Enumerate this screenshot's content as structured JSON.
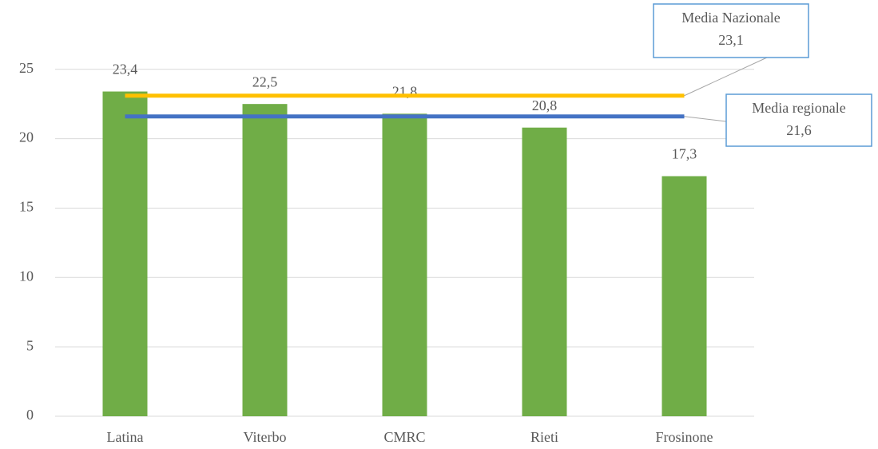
{
  "chart_data": {
    "type": "bar",
    "categories": [
      "Latina",
      "Viterbo",
      "CMRC",
      "Rieti",
      "Frosinone"
    ],
    "values": [
      23.4,
      22.5,
      21.8,
      20.8,
      17.3
    ],
    "value_labels": [
      "23,4",
      "22,5",
      "21,8",
      "20,8",
      "17,3"
    ],
    "color": "#70ad47",
    "ylim": [
      0,
      27
    ],
    "yticks": [
      0,
      5,
      10,
      15,
      20,
      25
    ],
    "grid": true,
    "reference_lines": [
      {
        "name": "Media Nazionale",
        "value": 23.1,
        "value_label": "23,1",
        "color": "#ffc000"
      },
      {
        "name": "Media regionale",
        "value": 21.6,
        "value_label": "21,6",
        "color": "#4472c4"
      }
    ]
  }
}
